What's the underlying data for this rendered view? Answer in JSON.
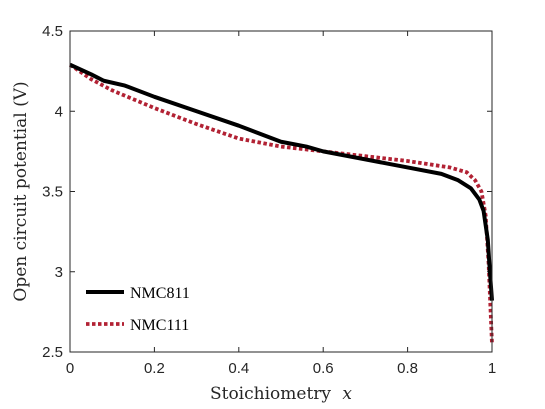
{
  "chart_data": {
    "type": "line",
    "xlabel": "Stoichiometry",
    "xlabel_var": "x",
    "ylabel": "Open circuit potential (V)",
    "xlim": [
      0,
      1
    ],
    "ylim": [
      2.5,
      4.5
    ],
    "x_ticks": [
      0,
      0.2,
      0.4,
      0.6,
      0.8,
      1
    ],
    "x_tick_labels": [
      "0",
      "0.2",
      "0.4",
      "0.6",
      "0.8",
      "1"
    ],
    "y_ticks": [
      2.5,
      3,
      3.5,
      4,
      4.5
    ],
    "y_tick_labels": [
      "2.5",
      "3",
      "3.5",
      "4",
      "4.5"
    ],
    "grid": false,
    "legend_position": "bottom-left",
    "series": [
      {
        "name": "NMC811",
        "color": "#000000",
        "style": "solid",
        "x": [
          0.0,
          0.05,
          0.08,
          0.13,
          0.2,
          0.3,
          0.4,
          0.45,
          0.5,
          0.56,
          0.6,
          0.7,
          0.8,
          0.88,
          0.92,
          0.95,
          0.97,
          0.98,
          0.99,
          0.995,
          1.0
        ],
        "y": [
          4.29,
          4.23,
          4.19,
          4.16,
          4.09,
          4.0,
          3.91,
          3.86,
          3.81,
          3.78,
          3.75,
          3.7,
          3.65,
          3.61,
          3.57,
          3.52,
          3.45,
          3.38,
          3.2,
          3.0,
          2.82
        ]
      },
      {
        "name": "NMC111",
        "color": "#b22234",
        "style": "dotted",
        "x": [
          0.0,
          0.05,
          0.1,
          0.2,
          0.3,
          0.4,
          0.5,
          0.6,
          0.7,
          0.8,
          0.9,
          0.94,
          0.96,
          0.975,
          0.985,
          0.992,
          0.996,
          1.0
        ],
        "y": [
          4.29,
          4.2,
          4.13,
          4.02,
          3.92,
          3.83,
          3.78,
          3.75,
          3.72,
          3.69,
          3.65,
          3.62,
          3.57,
          3.5,
          3.35,
          3.05,
          2.8,
          2.55
        ]
      }
    ]
  }
}
